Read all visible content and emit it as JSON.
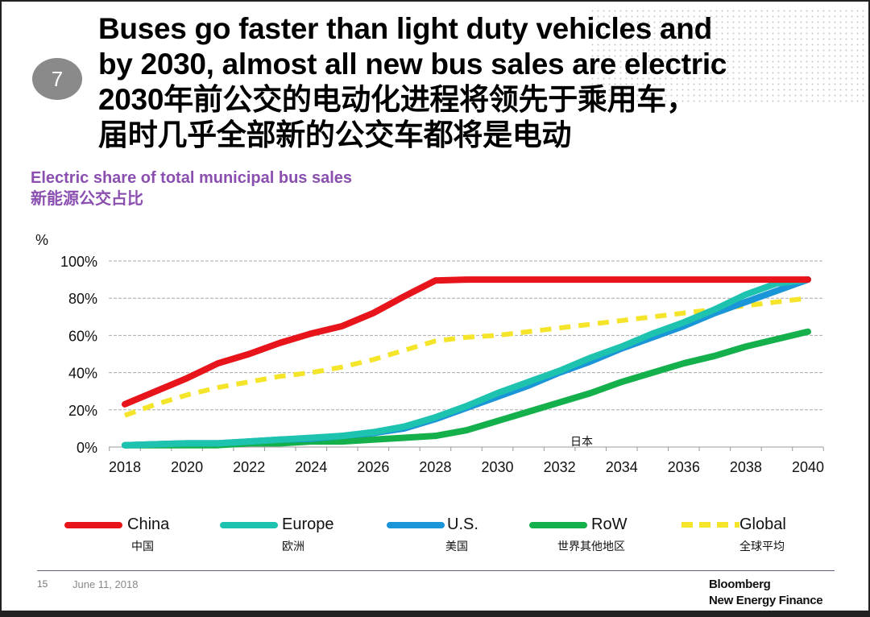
{
  "slide": {
    "badge": "7",
    "title_lines": [
      "Buses go faster than light duty vehicles and",
      "by 2030, almost all new bus sales are electric",
      "2030年前公交的电动化进程将领先于乘用车，",
      "届时几乎全部新的公交车都将是电动"
    ],
    "footer": {
      "page": "15",
      "date": "June 11, 2018",
      "logo": [
        "Bloomberg",
        "New Energy Finance"
      ]
    }
  },
  "chart_data": {
    "type": "line",
    "title": "Electric share of total municipal bus sales",
    "title_cn": "新能源公交占比",
    "ylabel": "%",
    "ylim": [
      0,
      100
    ],
    "yticks": [
      "0%",
      "20%",
      "40%",
      "60%",
      "80%",
      "100%"
    ],
    "xlim": [
      2018,
      2040
    ],
    "xticks": [
      "2018",
      "2020",
      "2022",
      "2024",
      "2026",
      "2028",
      "2030",
      "2032",
      "2034",
      "2036",
      "2038",
      "2040"
    ],
    "grid": true,
    "legend_placement": "bottom",
    "annotation": "日本",
    "x": [
      2018,
      2019,
      2020,
      2021,
      2022,
      2023,
      2024,
      2025,
      2026,
      2027,
      2028,
      2029,
      2030,
      2031,
      2032,
      2033,
      2034,
      2035,
      2036,
      2037,
      2038,
      2039,
      2040
    ],
    "series": [
      {
        "name": "China",
        "name_cn": "中国",
        "color": "#e8141b",
        "dash": false,
        "values": [
          23,
          30,
          37,
          45,
          50,
          56,
          61,
          65,
          72,
          81,
          89.5,
          90,
          90,
          90,
          90,
          90,
          90,
          90,
          90,
          90,
          90,
          90,
          90
        ]
      },
      {
        "name": "Europe",
        "name_cn": "欧洲",
        "color": "#1ec3b0",
        "dash": false,
        "values": [
          1,
          1.5,
          2,
          2,
          3,
          4,
          5,
          6,
          8,
          11,
          16,
          22,
          29,
          35,
          41,
          48,
          54,
          61,
          67,
          74,
          82,
          88,
          90
        ]
      },
      {
        "name": "U.S.",
        "name_cn": "美国",
        "color": "#1a95d8",
        "dash": false,
        "values": [
          1,
          1.5,
          2,
          2,
          3,
          4,
          4.5,
          6,
          7.5,
          10,
          15,
          21,
          27,
          33,
          40,
          46,
          53,
          59,
          65,
          72,
          78,
          84,
          90
        ]
      },
      {
        "name": "RoW",
        "name_cn": "世界其他地区",
        "color": "#14b04c",
        "dash": false,
        "values": [
          1,
          1,
          1,
          1,
          2,
          2,
          3,
          3,
          4,
          5,
          6,
          9,
          14,
          19,
          24,
          29,
          35,
          40,
          45,
          49,
          54,
          58,
          62
        ]
      },
      {
        "name": "Global",
        "name_cn": "全球平均",
        "color": "#f5e52a",
        "dash": true,
        "values": [
          17,
          23,
          28,
          32,
          35,
          38,
          40,
          43,
          47,
          52,
          57,
          59,
          60,
          62,
          64,
          66,
          68,
          70,
          72,
          74,
          76,
          78,
          80
        ]
      }
    ]
  }
}
